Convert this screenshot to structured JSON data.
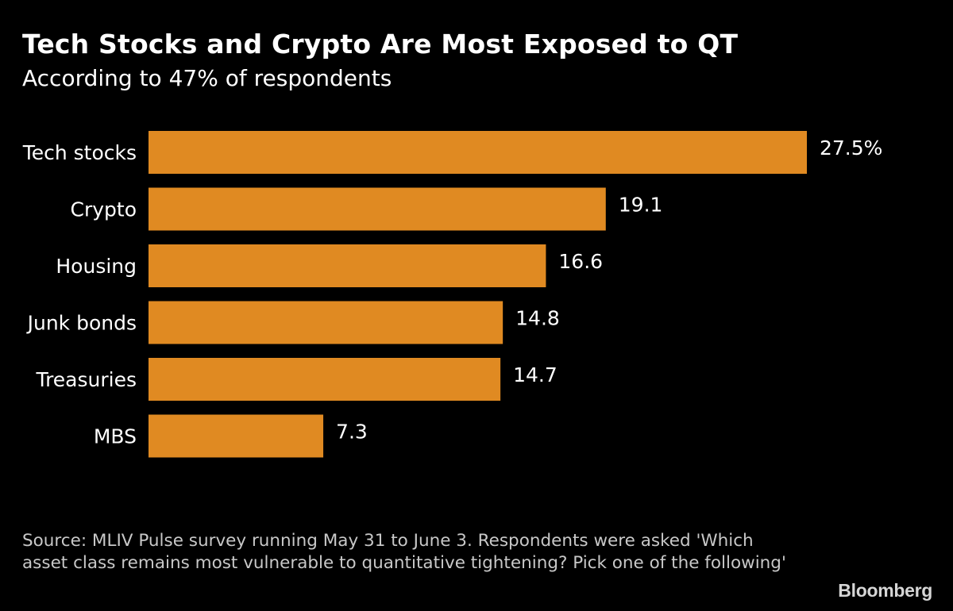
{
  "header": {
    "title": "Tech Stocks and Crypto Are Most Exposed to QT",
    "subtitle": "According to 47% of respondents"
  },
  "footer": {
    "source": "Source: MLIV Pulse survey running May 31 to June 3. Respondents were asked 'Which asset class remains most vulnerable to quantitative tightening? Pick one of the following'",
    "brand": "Bloomberg"
  },
  "colors": {
    "background": "#000000",
    "bar": "#e08a22",
    "text": "#ffffff"
  },
  "chart_data": {
    "type": "bar",
    "orientation": "horizontal",
    "title": "Tech Stocks and Crypto Are Most Exposed to QT",
    "subtitle": "According to 47% of respondents",
    "categories": [
      "Tech stocks",
      "Crypto",
      "Housing",
      "Junk bonds",
      "Treasuries",
      "MBS"
    ],
    "values": [
      27.5,
      19.1,
      16.6,
      14.8,
      14.7,
      7.3
    ],
    "value_labels": [
      "27.5%",
      "19.1",
      "16.6",
      "14.8",
      "14.7",
      "7.3"
    ],
    "unit": "%",
    "xlim": [
      0,
      27.5
    ],
    "grid": false,
    "legend": "none"
  }
}
